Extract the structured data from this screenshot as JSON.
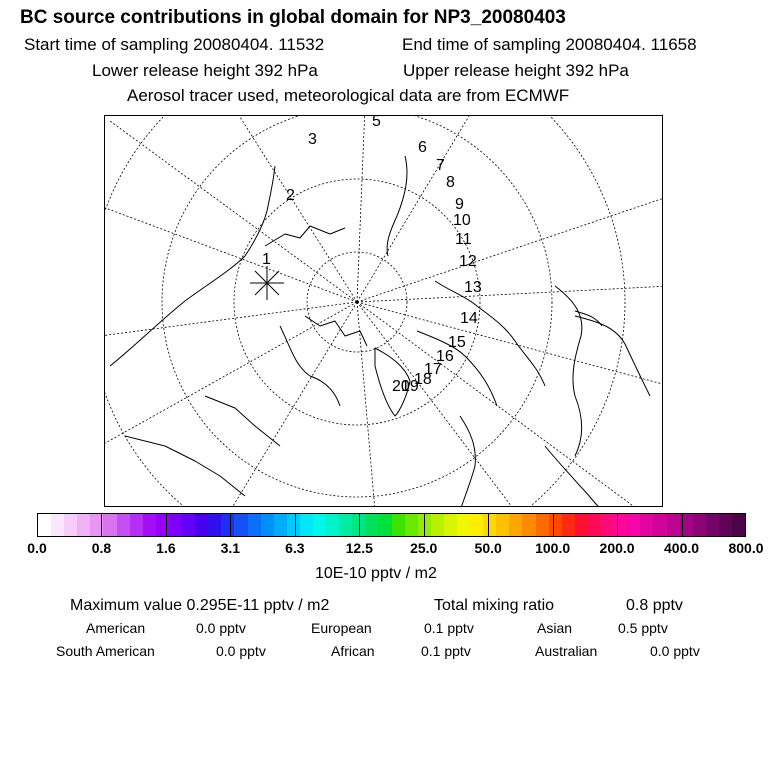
{
  "chart_data": {
    "type": "map",
    "title": "BC  source contributions in global domain for NP3_20080403",
    "start_label": "Start time of sampling 20080404. 11532",
    "end_label": "End time of sampling 20080404. 11658",
    "lower_label": "Lower release height  392 hPa",
    "upper_label": "Upper release height  392 hPa",
    "subtitle": "Aerosol tracer used, meteorological data are from ECMWF",
    "trajectory_labels": [
      "20",
      "19",
      "18",
      "17",
      "16",
      "15",
      "14",
      "13",
      "12",
      "11",
      "10",
      "9",
      "8",
      "7",
      "6",
      "5",
      "3",
      "2",
      "1"
    ],
    "colorbar": {
      "ticks": [
        "0.0",
        "0.8",
        "1.6",
        "3.1",
        "6.3",
        "12.5",
        "25.0",
        "50.0",
        "100.0",
        "200.0",
        "400.0",
        "800.0"
      ],
      "colors": [
        "#ffffff",
        "#fbe6ff",
        "#f6ccfb",
        "#f0b1f7",
        "#e895f3",
        "#d973f0",
        "#c44ff2",
        "#b42ef4",
        "#a40ef7",
        "#9600f9",
        "#7f00fa",
        "#6400f7",
        "#4600f0",
        "#2d10ec",
        "#1c30f0",
        "#1450f4",
        "#0b70f8",
        "#0090fb",
        "#00acfc",
        "#00c8fa",
        "#00e8f8",
        "#00f8ec",
        "#00f2c8",
        "#00eca4",
        "#00e680",
        "#00e05c",
        "#00e03a",
        "#3ae400",
        "#6ae800",
        "#94ec00",
        "#b8f000",
        "#d8f400",
        "#f0f800",
        "#ffee00",
        "#ffd800",
        "#ffc000",
        "#ffa600",
        "#ff8a00",
        "#ff6a00",
        "#ff4a00",
        "#ff2a10",
        "#ff1030",
        "#ff0a58",
        "#ff0a7a",
        "#ff089a",
        "#f606a8",
        "#e404a2",
        "#d0049a",
        "#bc0490",
        "#a40486",
        "#8c0478",
        "#740468",
        "#600458",
        "#4c0448"
      ],
      "unit": "10E-10 pptv / m2"
    },
    "summary": {
      "max_label": "Maximum value  0.295E-11 pptv / m2",
      "total_label": "Total mixing ratio",
      "total_value": "0.8 pptv"
    },
    "regions": [
      {
        "name": "American",
        "value": "0.0 pptv"
      },
      {
        "name": "European",
        "value": "0.1 pptv"
      },
      {
        "name": "Asian",
        "value": "0.5 pptv"
      },
      {
        "name": "South American",
        "value": "0.0 pptv"
      },
      {
        "name": "African",
        "value": "0.1 pptv"
      },
      {
        "name": "Australian",
        "value": "0.0 pptv"
      }
    ]
  }
}
